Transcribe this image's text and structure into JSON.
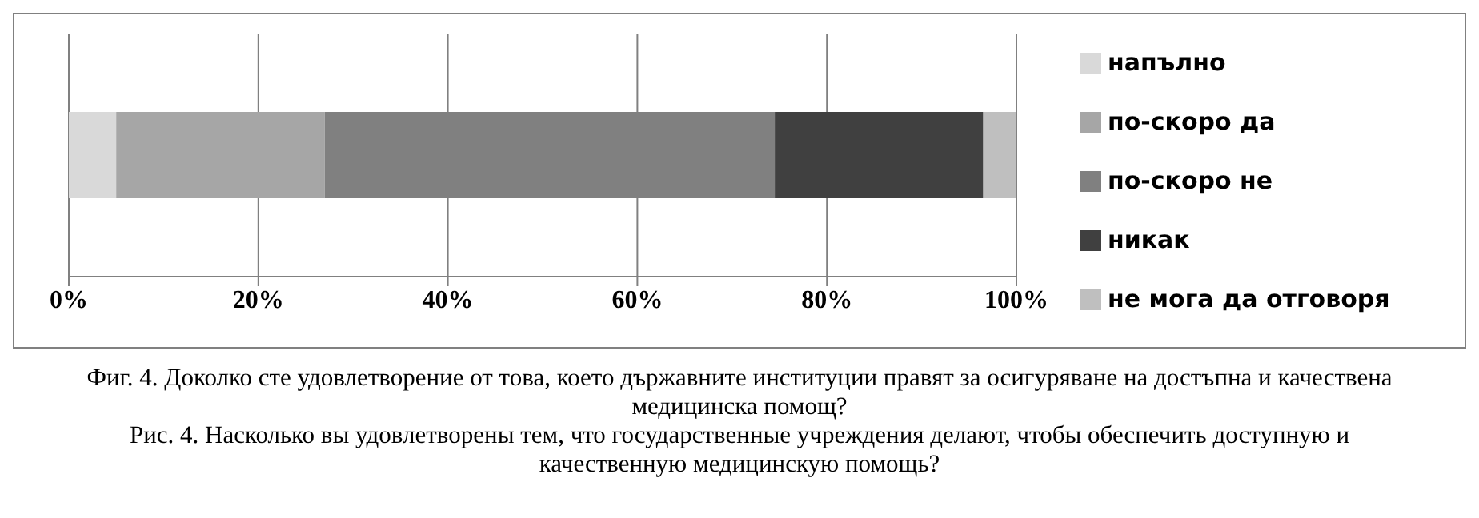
{
  "chart_data": {
    "type": "bar",
    "orientation": "horizontal",
    "stacked": true,
    "categories": [
      null
    ],
    "series": [
      {
        "name": "напълно",
        "color": "#d9d9d9",
        "values": [
          5
        ]
      },
      {
        "name": "по-скоро да",
        "color": "#a6a6a6",
        "values": [
          22
        ]
      },
      {
        "name": "по-скоро не",
        "color": "#808080",
        "values": [
          47.5
        ]
      },
      {
        "name": "никак",
        "color": "#404040",
        "values": [
          22
        ]
      },
      {
        "name": "не мога да отговоря",
        "color": "#bfbfbf",
        "values": [
          3.5
        ]
      }
    ],
    "xlim": [
      0,
      100
    ],
    "xticks": [
      {
        "value": 0,
        "label": "0%"
      },
      {
        "value": 20,
        "label": "20%"
      },
      {
        "value": 40,
        "label": "40%"
      },
      {
        "value": 60,
        "label": "60%"
      },
      {
        "value": 80,
        "label": "80%"
      },
      {
        "value": 100,
        "label": "100%"
      }
    ],
    "grid": "x",
    "legend": "right",
    "annotations": [
      "Фиг. 4. Доколко сте удовлетворение от това, което държавните институции правят за осигуряване на достъпна и качествена медицинска помощ?",
      "Рис. 4. Насколько вы удовлетворены тем, что государственные учреждения делают, чтобы обеспечить доступную и качественную медицинскую помощь?"
    ]
  }
}
